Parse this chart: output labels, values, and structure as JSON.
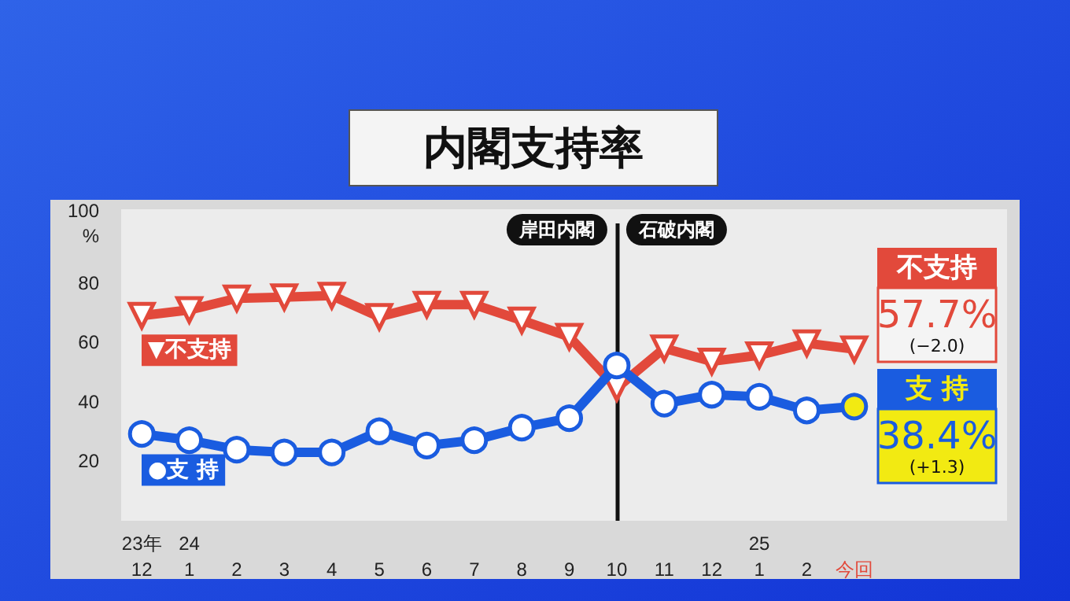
{
  "chart_data": {
    "type": "line",
    "title": "内閣支持率",
    "categories": [
      "23年\n12",
      "24\n1",
      "2",
      "3",
      "4",
      "5",
      "6",
      "7",
      "8",
      "9",
      "10",
      "11",
      "12",
      "25\n1",
      "2",
      "今回"
    ],
    "series": [
      {
        "name": "不支持",
        "color": "#e2493b",
        "marker": "triangle",
        "values": [
          69.0,
          70.9,
          74.8,
          75.2,
          75.7,
          68.6,
          72.7,
          72.7,
          67.4,
          61.9,
          44.7,
          58.0,
          53.6,
          55.7,
          59.7,
          57.7
        ],
        "value_labels": [
          null,
          null,
          null,
          null,
          null,
          null,
          null,
          null,
          null,
          null,
          null,
          null,
          null,
          null,
          null,
          "57.7%"
        ]
      },
      {
        "name": "支 持",
        "color": "#1a5ce0",
        "marker": "circle",
        "colors": [
          "#ffffff",
          "#ffffff",
          "#ffffff",
          "#ffffff",
          "#ffffff",
          "#ffffff",
          "#ffffff",
          "#ffffff",
          "#ffffff",
          "#ffffff",
          "#ffffff",
          "#ffffff",
          "#ffffff",
          "#ffffff",
          "#ffffff",
          "#f2ea12"
        ],
        "values": [
          29.2,
          27.1,
          23.9,
          23.0,
          23.0,
          30.1,
          25.3,
          27.1,
          31.3,
          34.5,
          52.2,
          39.4,
          42.4,
          41.7,
          37.1,
          38.4
        ],
        "value_labels": [
          null,
          null,
          null,
          null,
          null,
          null,
          null,
          null,
          null,
          null,
          null,
          null,
          null,
          null,
          null,
          "38.4%"
        ]
      }
    ],
    "ylim": [
      0,
      100
    ],
    "yticks": [
      20,
      40,
      60,
      80,
      {
        "value": 100,
        "label": "100\n%"
      }
    ],
    "ref_lines": [
      {
        "axis": "x",
        "value": "10",
        "color": "#111111"
      }
    ],
    "annotations": [
      "岸田内閣",
      "石破内閣",
      "▼不支持",
      "●支 持",
      "(−2.0)",
      "(+1.3)"
    ]
  }
}
